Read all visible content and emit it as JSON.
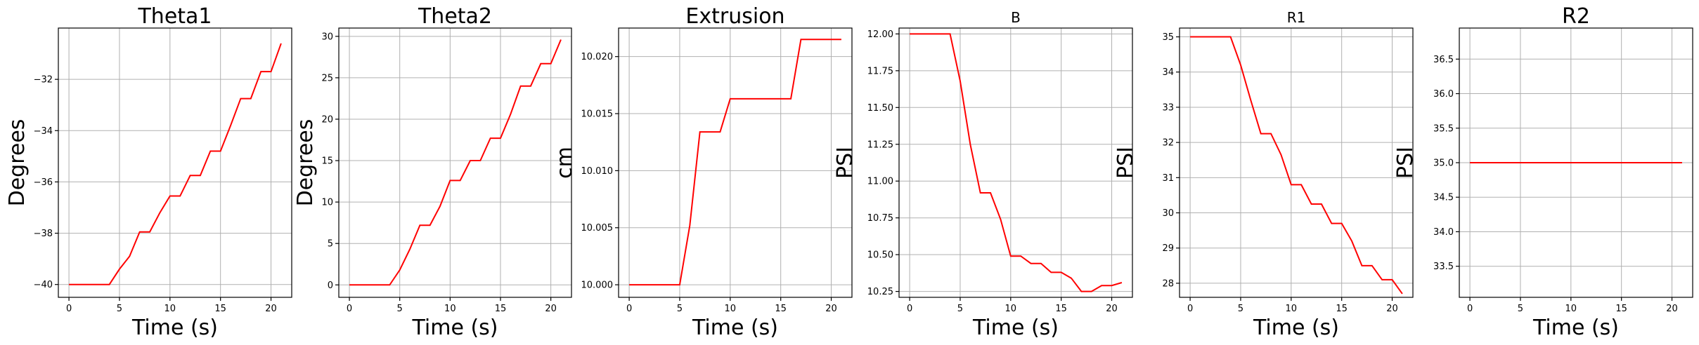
{
  "chart_data": [
    {
      "type": "line",
      "title": "Theta1",
      "xlabel": "Time (s)",
      "ylabel": "Degrees",
      "xlim": [
        -1.05,
        22.05
      ],
      "ylim": [
        -40.5,
        -30.0
      ],
      "xticks": [
        0,
        5,
        10,
        15,
        20
      ],
      "xtick_labels": [
        "0",
        "5",
        "10",
        "15",
        "20"
      ],
      "yticks": [
        -40,
        -38,
        -36,
        -34,
        -32
      ],
      "ytick_labels": [
        "−40",
        "−38",
        "−36",
        "−34",
        "−32"
      ],
      "grid": true,
      "series": [
        {
          "color": "#ff0000",
          "x": [
            0,
            1,
            2,
            3,
            4,
            5,
            6,
            7,
            8,
            9,
            10,
            11,
            12,
            13,
            14,
            15,
            16,
            17,
            18,
            19,
            20,
            21
          ],
          "y": [
            -40,
            -40,
            -40,
            -40,
            -40,
            -39.4,
            -38.9,
            -37.95,
            -37.95,
            -37.2,
            -36.55,
            -36.55,
            -35.75,
            -35.75,
            -34.8,
            -34.8,
            -33.8,
            -32.75,
            -32.75,
            -31.7,
            -31.7,
            -30.6
          ]
        }
      ]
    },
    {
      "type": "line",
      "title": "Theta2",
      "xlabel": "Time (s)",
      "ylabel": "Degrees",
      "xlim": [
        -1.05,
        22.05
      ],
      "ylim": [
        -1.5,
        31.0
      ],
      "xticks": [
        0,
        5,
        10,
        15,
        20
      ],
      "xtick_labels": [
        "0",
        "5",
        "10",
        "15",
        "20"
      ],
      "yticks": [
        0,
        5,
        10,
        15,
        20,
        25,
        30
      ],
      "ytick_labels": [
        "0",
        "5",
        "10",
        "15",
        "20",
        "25",
        "30"
      ],
      "grid": true,
      "series": [
        {
          "color": "#ff0000",
          "x": [
            0,
            1,
            2,
            3,
            4,
            5,
            6,
            7,
            8,
            9,
            10,
            11,
            12,
            13,
            14,
            15,
            16,
            17,
            18,
            19,
            20,
            21
          ],
          "y": [
            0,
            0,
            0,
            0,
            0,
            1.8,
            4.3,
            7.2,
            7.2,
            9.5,
            12.6,
            12.6,
            15.0,
            15.0,
            17.7,
            17.7,
            20.6,
            24.0,
            24.0,
            26.7,
            26.7,
            29.6
          ]
        }
      ]
    },
    {
      "type": "line",
      "title": "Extrusion",
      "xlabel": "Time (s)",
      "ylabel": "cm",
      "xlim": [
        -1.05,
        22.05
      ],
      "ylim": [
        9.9989,
        10.0225
      ],
      "xticks": [
        0,
        5,
        10,
        15,
        20
      ],
      "xtick_labels": [
        "0",
        "5",
        "10",
        "15",
        "20"
      ],
      "yticks": [
        10.0,
        10.005,
        10.01,
        10.015,
        10.02
      ],
      "ytick_labels": [
        "10.000",
        "10.005",
        "10.010",
        "10.015",
        "10.020"
      ],
      "grid": true,
      "series": [
        {
          "color": "#ff0000",
          "x": [
            0,
            1,
            2,
            3,
            4,
            5,
            6,
            7,
            8,
            9,
            10,
            11,
            12,
            13,
            14,
            15,
            16,
            17,
            18,
            19,
            20,
            21
          ],
          "y": [
            10.0,
            10.0,
            10.0,
            10.0,
            10.0,
            10.0,
            10.0052,
            10.0134,
            10.0134,
            10.0134,
            10.0163,
            10.0163,
            10.0163,
            10.0163,
            10.0163,
            10.0163,
            10.0163,
            10.0215,
            10.0215,
            10.0215,
            10.0215,
            10.0215
          ]
        }
      ]
    },
    {
      "type": "line",
      "title": "B",
      "xlabel": "Time (s)",
      "ylabel": "PSI",
      "xlim": [
        -1.05,
        22.05
      ],
      "ylim": [
        10.21,
        12.04
      ],
      "xticks": [
        0,
        5,
        10,
        15,
        20
      ],
      "xtick_labels": [
        "0",
        "5",
        "10",
        "15",
        "20"
      ],
      "yticks": [
        10.25,
        10.5,
        10.75,
        11.0,
        11.25,
        11.5,
        11.75,
        12.0
      ],
      "ytick_labels": [
        "10.25",
        "10.50",
        "10.75",
        "11.00",
        "11.25",
        "11.50",
        "11.75",
        "12.00"
      ],
      "grid": true,
      "series": [
        {
          "color": "#ff0000",
          "x": [
            0,
            1,
            2,
            3,
            4,
            5,
            6,
            7,
            8,
            9,
            10,
            11,
            12,
            13,
            14,
            15,
            16,
            17,
            18,
            19,
            20,
            21
          ],
          "y": [
            12.0,
            12.0,
            12.0,
            12.0,
            12.0,
            11.68,
            11.25,
            10.92,
            10.92,
            10.74,
            10.49,
            10.49,
            10.44,
            10.44,
            10.38,
            10.38,
            10.34,
            10.25,
            10.25,
            10.29,
            10.29,
            10.31
          ]
        }
      ]
    },
    {
      "type": "line",
      "title": "R1",
      "xlabel": "Time (s)",
      "ylabel": "PSI",
      "xlim": [
        -1.05,
        22.05
      ],
      "ylim": [
        27.6,
        35.25
      ],
      "xticks": [
        0,
        5,
        10,
        15,
        20
      ],
      "xtick_labels": [
        "0",
        "5",
        "10",
        "15",
        "20"
      ],
      "yticks": [
        28,
        29,
        30,
        31,
        32,
        33,
        34,
        35
      ],
      "ytick_labels": [
        "28",
        "29",
        "30",
        "31",
        "32",
        "33",
        "34",
        "35"
      ],
      "grid": true,
      "series": [
        {
          "color": "#ff0000",
          "x": [
            0,
            1,
            2,
            3,
            4,
            5,
            6,
            7,
            8,
            9,
            10,
            11,
            12,
            13,
            14,
            15,
            16,
            17,
            18,
            19,
            20,
            21
          ],
          "y": [
            35.0,
            35.0,
            35.0,
            35.0,
            35.0,
            34.2,
            33.2,
            32.25,
            32.25,
            31.65,
            30.8,
            30.8,
            30.25,
            30.25,
            29.7,
            29.7,
            29.2,
            28.5,
            28.5,
            28.1,
            28.1,
            27.7
          ]
        }
      ]
    },
    {
      "type": "line",
      "title": "R2",
      "xlabel": "Time (s)",
      "ylabel": "PSI",
      "xlim": [
        -1.05,
        22.05
      ],
      "ylim": [
        33.05,
        36.95
      ],
      "xticks": [
        0,
        5,
        10,
        15,
        20
      ],
      "xtick_labels": [
        "0",
        "5",
        "10",
        "15",
        "20"
      ],
      "yticks": [
        33.5,
        34.0,
        34.5,
        35.0,
        35.5,
        36.0,
        36.5
      ],
      "ytick_labels": [
        "33.5",
        "34.0",
        "34.5",
        "35.0",
        "35.5",
        "36.0",
        "36.5"
      ],
      "grid": true,
      "series": [
        {
          "color": "#ff0000",
          "x": [
            0,
            1,
            2,
            3,
            4,
            5,
            6,
            7,
            8,
            9,
            10,
            11,
            12,
            13,
            14,
            15,
            16,
            17,
            18,
            19,
            20,
            21
          ],
          "y": [
            35.0,
            35.0,
            35.0,
            35.0,
            35.0,
            35.0,
            35.0,
            35.0,
            35.0,
            35.0,
            35.0,
            35.0,
            35.0,
            35.0,
            35.0,
            35.0,
            35.0,
            35.0,
            35.0,
            35.0,
            35.0,
            35.0
          ]
        }
      ]
    }
  ]
}
